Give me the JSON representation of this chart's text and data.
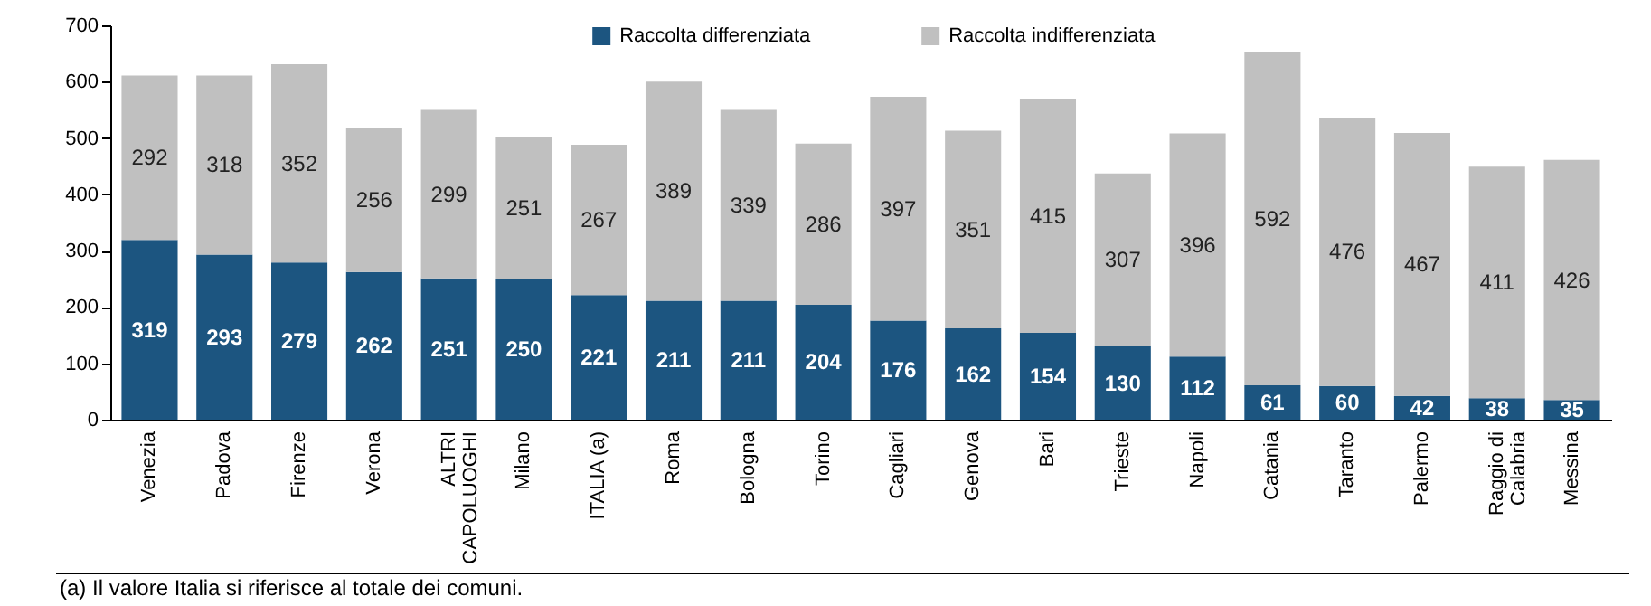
{
  "chart_data": {
    "type": "bar",
    "stacked": true,
    "categories": [
      "Venezia",
      "Padova",
      "Firenze",
      "Verona",
      "ALTRI CAPOLUOGHI",
      "Milano",
      "ITALIA (a)",
      "Roma",
      "Bologna",
      "Torino",
      "Cagliari",
      "Genova",
      "Bari",
      "Trieste",
      "Napoli",
      "Catania",
      "Taranto",
      "Palermo",
      "Raggio di Calabria",
      "Messina"
    ],
    "series": [
      {
        "name": "Raccolta differenziata",
        "color": "#1c5580",
        "values": [
          319,
          293,
          279,
          262,
          251,
          250,
          221,
          211,
          211,
          204,
          176,
          162,
          154,
          130,
          112,
          61,
          60,
          42,
          38,
          35
        ]
      },
      {
        "name": "Raccolta indifferenziata",
        "color": "#c0c0c0",
        "values": [
          292,
          318,
          352,
          256,
          299,
          251,
          267,
          389,
          339,
          286,
          397,
          351,
          415,
          307,
          396,
          592,
          476,
          467,
          411,
          426
        ]
      }
    ],
    "ylim": [
      0,
      700
    ],
    "yticks": [
      0,
      100,
      200,
      300,
      400,
      500,
      600,
      700
    ],
    "grid": false,
    "legend": "top",
    "data_labels": true,
    "annotations": [
      "(a) Il valore Italia si riferisce al totale dei comuni."
    ]
  }
}
